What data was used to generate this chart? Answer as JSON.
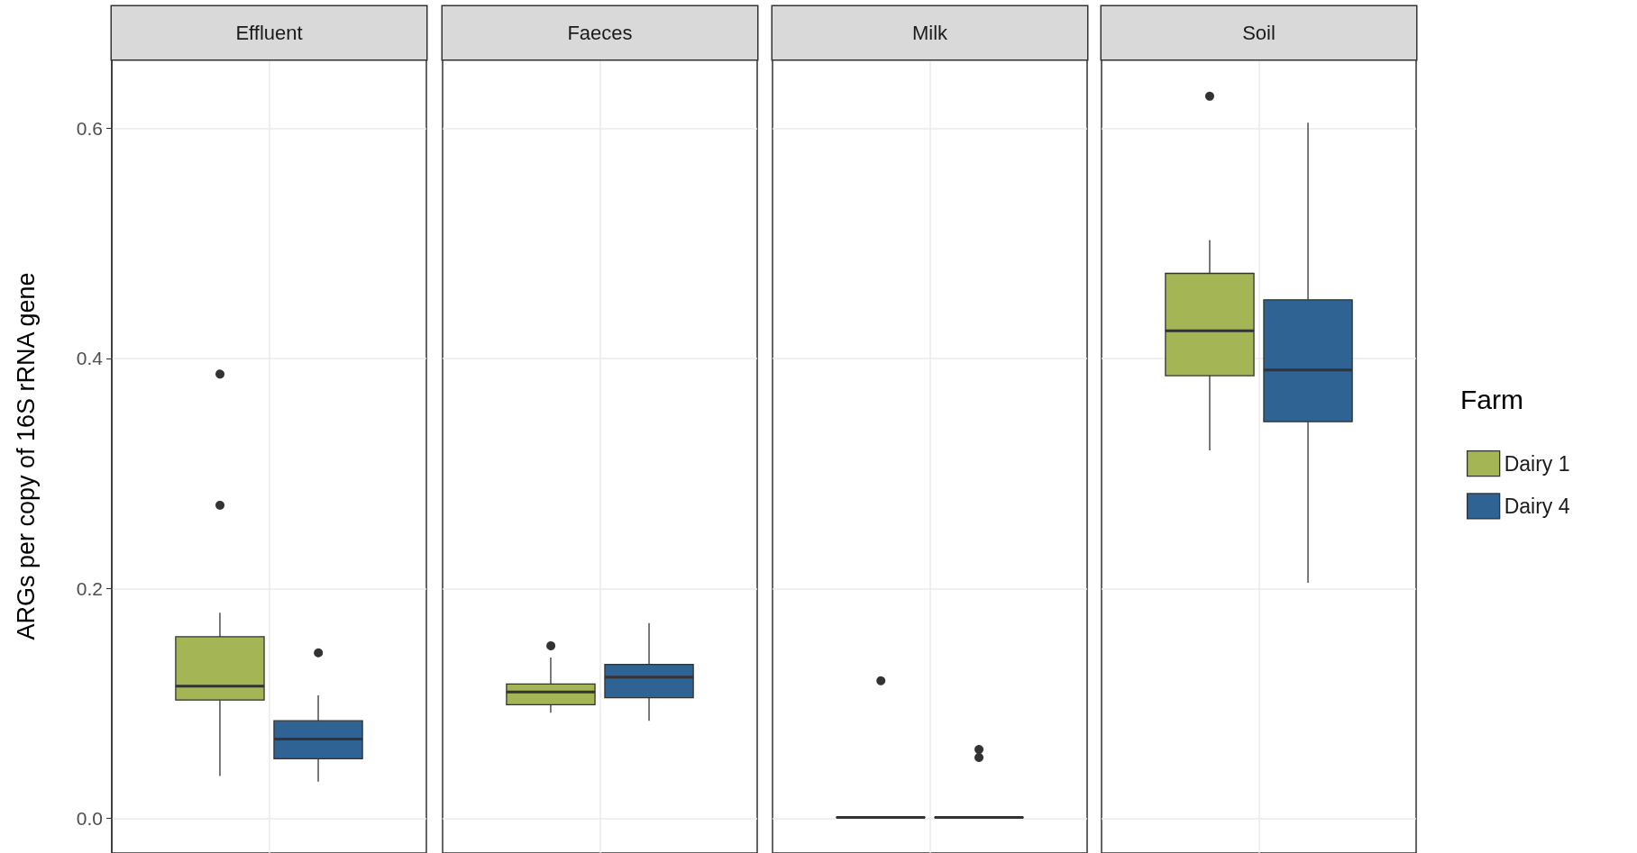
{
  "chart_data": {
    "type": "box",
    "ylabel": "ARGs per copy of 16S rRNA gene",
    "categories": [
      "Effluent",
      "Faeces",
      "Milk",
      "Soil"
    ],
    "ylim": [
      -0.03,
      0.66
    ],
    "yticks": [
      {
        "value": 0,
        "label": "0.0"
      },
      {
        "value": 0.2,
        "label": "0.2"
      },
      {
        "value": 0.4,
        "label": "0.4"
      },
      {
        "value": 0.6,
        "label": "0.6"
      }
    ],
    "grid": true,
    "legend": "right",
    "legend_title": "Farm",
    "series": [
      {
        "name": "Dairy 1",
        "color": "#a3b555",
        "boxes": [
          {
            "low": 0.037,
            "q1": 0.103,
            "median": 0.115,
            "q3": 0.158,
            "high": 0.179,
            "outliers": [
              0.387,
              0.273
            ]
          },
          {
            "low": 0.092,
            "q1": 0.099,
            "median": 0.11,
            "q3": 0.117,
            "high": 0.14,
            "outliers": [
              0.151
            ]
          },
          {
            "low": 0.001,
            "q1": 0.001,
            "median": 0.001,
            "q3": 0.001,
            "high": 0.001,
            "outliers": [
              0.121
            ]
          },
          {
            "low": 0.32,
            "q1": 0.385,
            "median": 0.424,
            "q3": 0.474,
            "high": 0.503,
            "outliers": [
              0.628
            ]
          }
        ]
      },
      {
        "name": "Dairy 4",
        "color": "#2e6393",
        "boxes": [
          {
            "low": 0.032,
            "q1": 0.052,
            "median": 0.069,
            "q3": 0.085,
            "high": 0.107,
            "outliers": [
              0.145
            ]
          },
          {
            "low": 0.085,
            "q1": 0.105,
            "median": 0.123,
            "q3": 0.134,
            "high": 0.17
          },
          {
            "low": 0.001,
            "q1": 0.001,
            "median": 0.001,
            "q3": 0.001,
            "high": 0.001,
            "outliers": [
              0.06,
              0.053
            ]
          },
          {
            "low": 0.205,
            "q1": 0.345,
            "median": 0.39,
            "q3": 0.451,
            "high": 0.605
          }
        ]
      }
    ]
  }
}
